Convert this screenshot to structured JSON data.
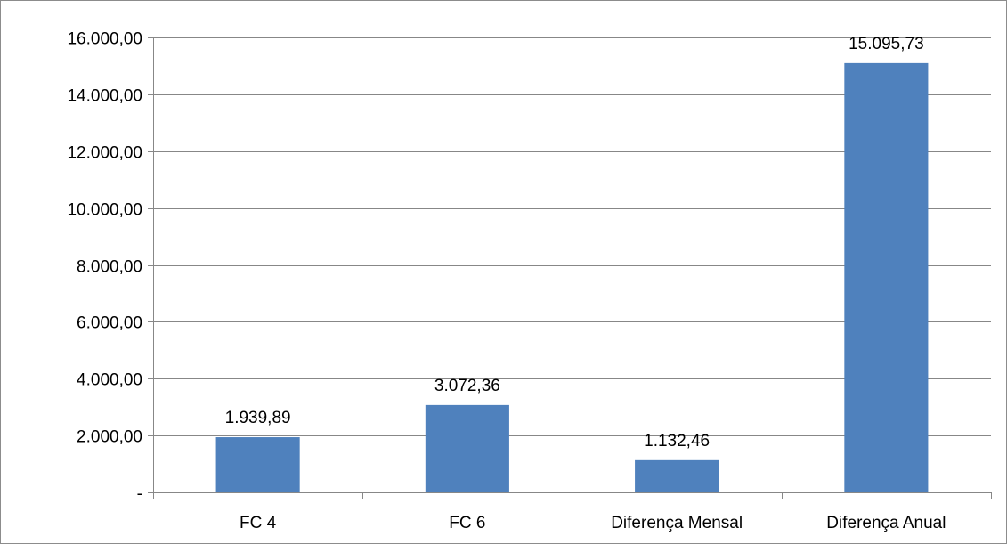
{
  "chart_data": {
    "type": "bar",
    "categories": [
      "FC 4",
      "FC 6",
      "Diferença Mensal",
      "Diferença Anual"
    ],
    "values": [
      1939.89,
      3072.36,
      1132.46,
      15095.73
    ],
    "value_labels": [
      "1.939,89",
      "3.072,36",
      "1.132,46",
      "15.095,73"
    ],
    "y_ticks": [
      0,
      2000,
      4000,
      6000,
      8000,
      10000,
      12000,
      14000,
      16000
    ],
    "y_tick_labels": [
      "-",
      "2.000,00",
      "4.000,00",
      "6.000,00",
      "8.000,00",
      "10.000,00",
      "12.000,00",
      "14.000,00",
      "16.000,00"
    ],
    "ylim": [
      0,
      16000
    ],
    "grid": true,
    "legend": "none",
    "bar_color": "#4f81bd",
    "grid_color": "#878787",
    "axis_color": "#878787",
    "title": "",
    "xlabel": "",
    "ylabel": ""
  }
}
